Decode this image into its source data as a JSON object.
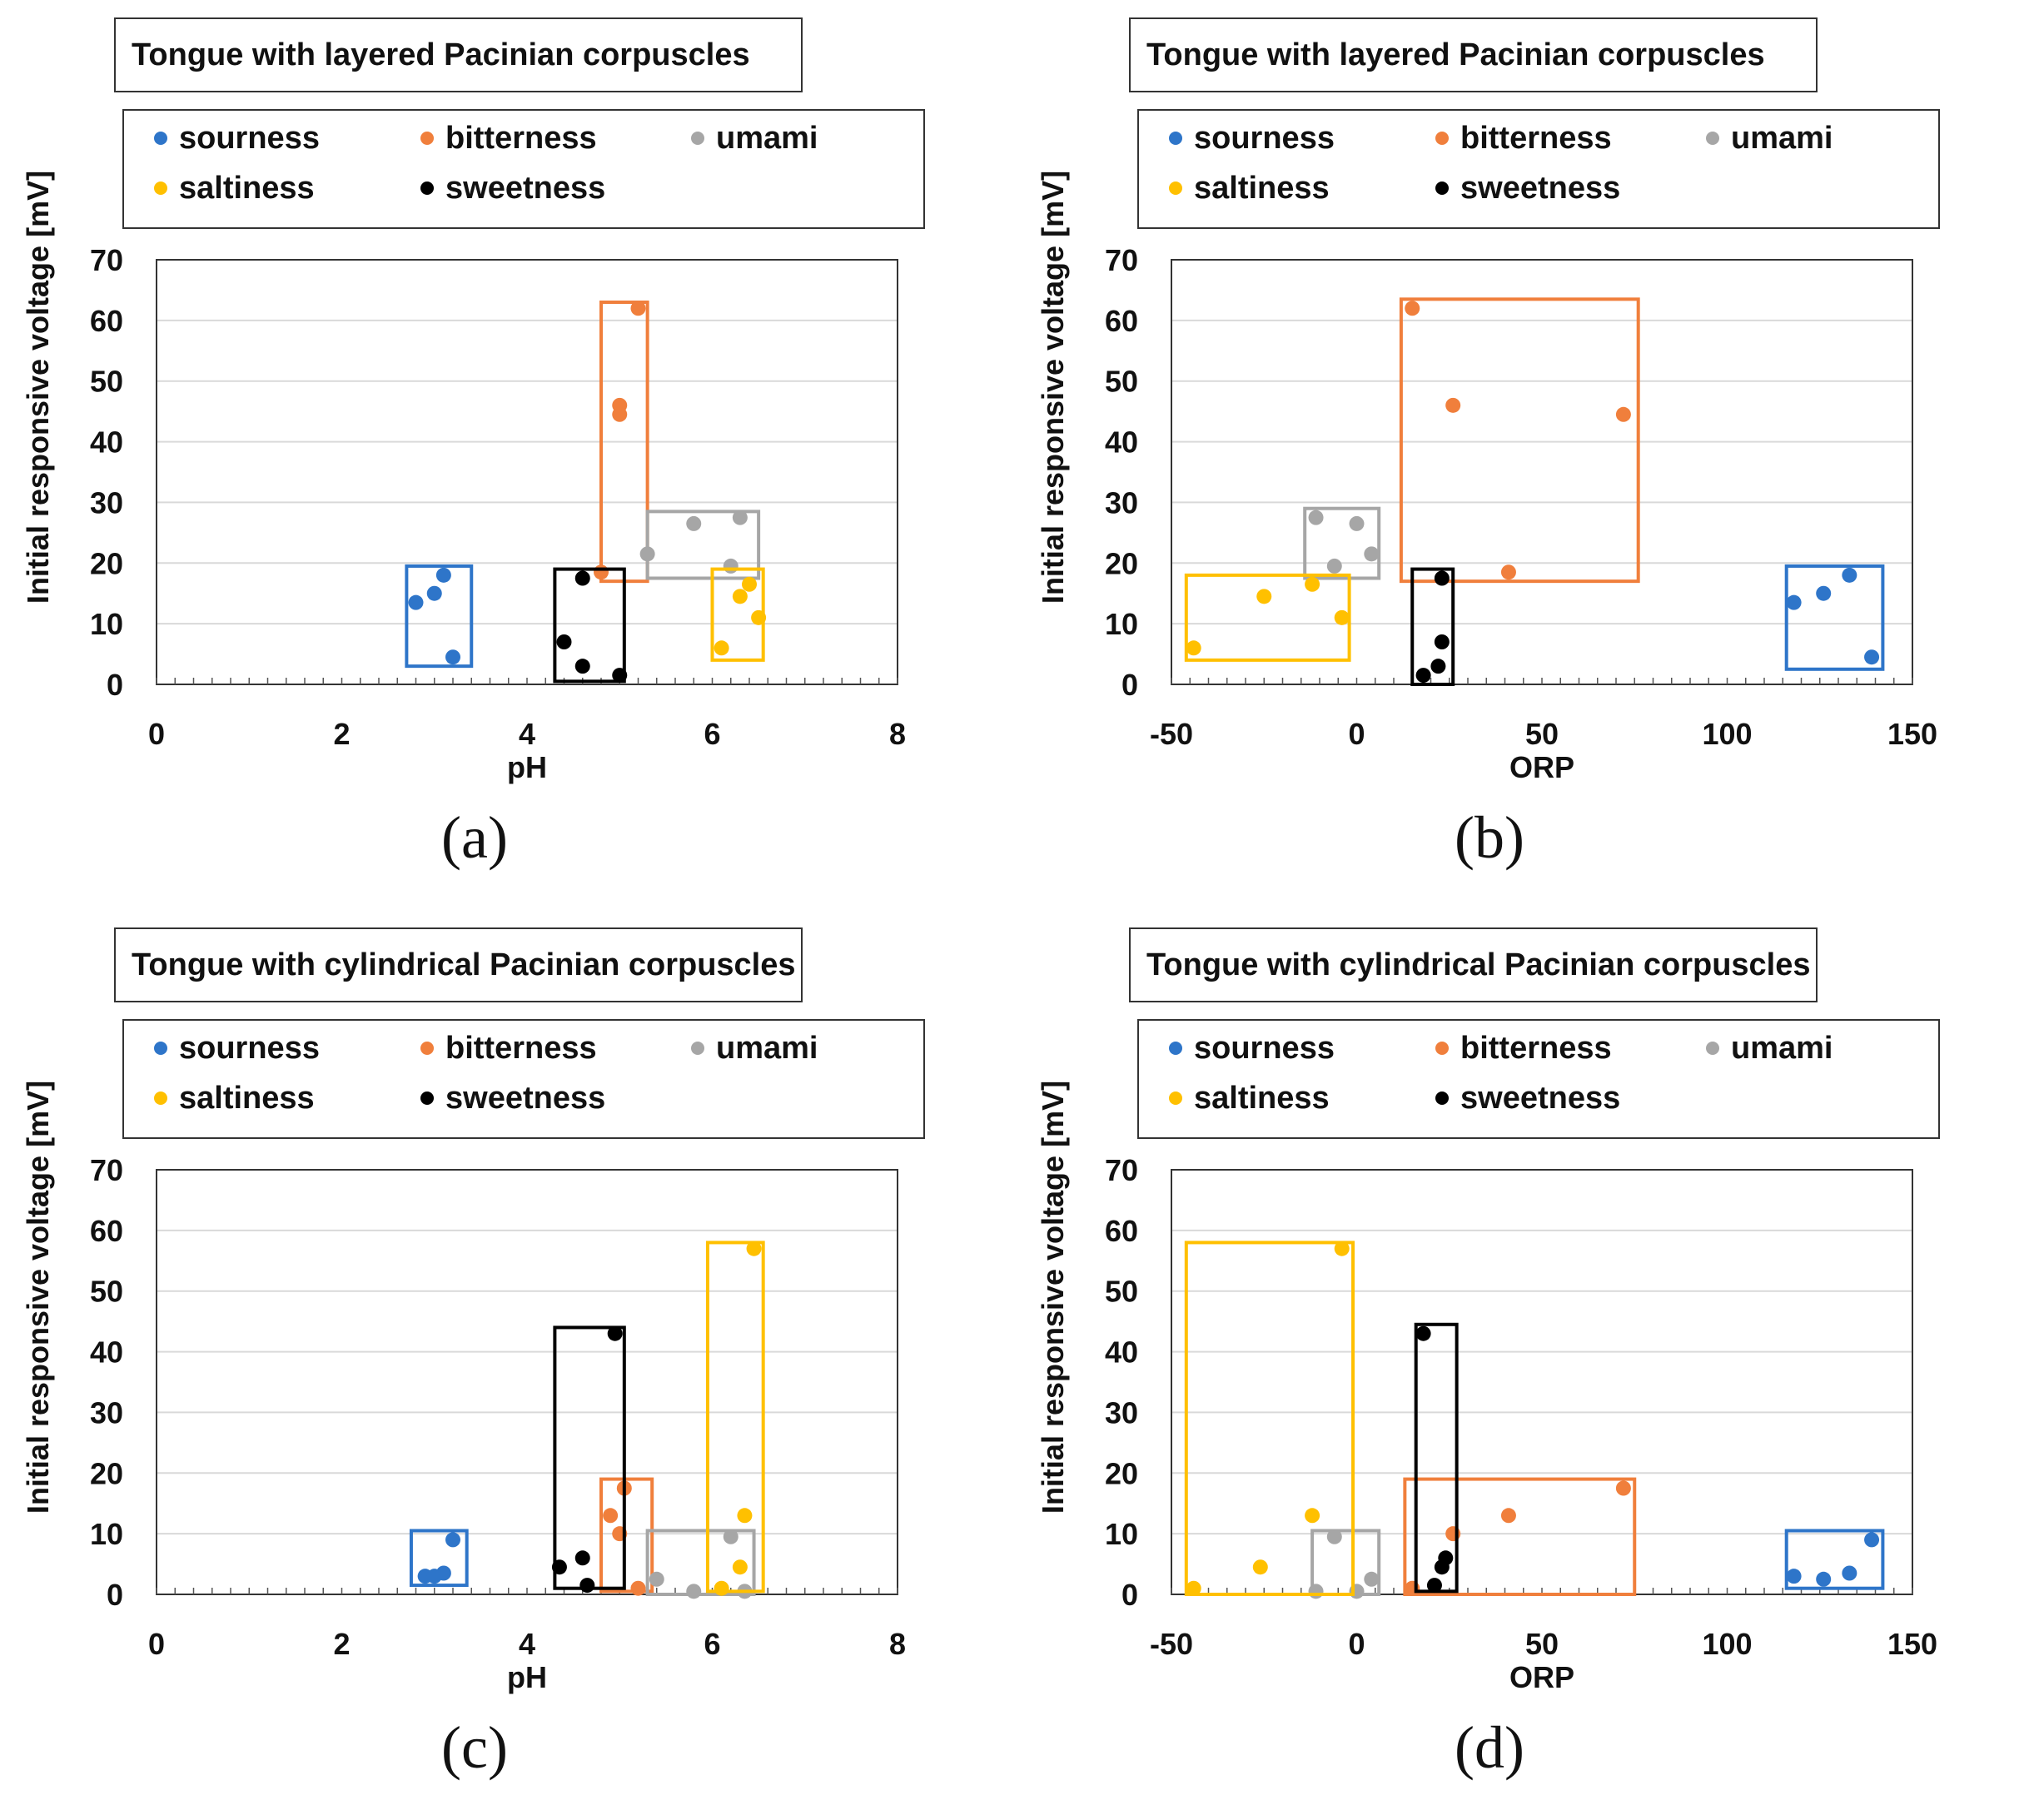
{
  "figure": {
    "labels": [
      "(a)",
      "(b)",
      "(c)",
      "(d)"
    ]
  },
  "legend": {
    "entries": [
      {
        "key": "sourness",
        "label": "sourness",
        "color": "#2E75C9"
      },
      {
        "key": "bitterness",
        "label": "bitterness",
        "color": "#F07F3C"
      },
      {
        "key": "umami",
        "label": "umami",
        "color": "#A6A6A6"
      },
      {
        "key": "saltiness",
        "label": "saltiness",
        "color": "#FFC000"
      },
      {
        "key": "sweetness",
        "label": "sweetness",
        "color": "#000000"
      }
    ]
  },
  "chart_data": [
    {
      "type": "scatter",
      "panel_label": "(a)",
      "title": "Tongue with layered Pacinian corpuscles",
      "xlabel": "pH",
      "ylabel": "Initial responsive voltage [mV]",
      "xlim": [
        0,
        8
      ],
      "ylim": [
        0,
        70
      ],
      "xticks": [
        0,
        2,
        4,
        6,
        8
      ],
      "yticks": [
        0,
        10,
        20,
        30,
        40,
        50,
        60,
        70
      ],
      "series": [
        {
          "name": "sourness",
          "points": [
            [
              2.8,
              13.5
            ],
            [
              3.0,
              15
            ],
            [
              3.1,
              18
            ],
            [
              3.2,
              4.5
            ]
          ],
          "box": [
            2.7,
            3.4,
            3,
            19.5
          ]
        },
        {
          "name": "bitterness",
          "points": [
            [
              4.8,
              18.5
            ],
            [
              5.0,
              46
            ],
            [
              5.0,
              44.5
            ],
            [
              5.2,
              62
            ]
          ],
          "box": [
            4.8,
            5.3,
            17,
            63
          ]
        },
        {
          "name": "umami",
          "points": [
            [
              5.3,
              21.5
            ],
            [
              5.8,
              26.5
            ],
            [
              6.2,
              19.5
            ],
            [
              6.3,
              27.5
            ]
          ],
          "box": [
            5.3,
            6.5,
            17.5,
            28.5
          ]
        },
        {
          "name": "saltiness",
          "points": [
            [
              6.1,
              6
            ],
            [
              6.3,
              14.5
            ],
            [
              6.4,
              16.5
            ],
            [
              6.5,
              11
            ]
          ],
          "box": [
            6.0,
            6.55,
            4,
            19
          ]
        },
        {
          "name": "sweetness",
          "points": [
            [
              4.4,
              7
            ],
            [
              4.6,
              17.5
            ],
            [
              4.6,
              3
            ],
            [
              5.0,
              1.5
            ]
          ],
          "box": [
            4.3,
            5.05,
            0.5,
            19
          ]
        }
      ]
    },
    {
      "type": "scatter",
      "panel_label": "(b)",
      "title": "Tongue with layered Pacinian corpuscles",
      "xlabel": "ORP",
      "ylabel": "Initial responsive voltage [mV]",
      "xlim": [
        -50,
        150
      ],
      "ylim": [
        0,
        70
      ],
      "xticks": [
        -50,
        0,
        50,
        100,
        150
      ],
      "yticks": [
        0,
        10,
        20,
        30,
        40,
        50,
        60,
        70
      ],
      "series": [
        {
          "name": "sourness",
          "points": [
            [
              118,
              13.5
            ],
            [
              126,
              15
            ],
            [
              133,
              18
            ],
            [
              139,
              4.5
            ]
          ],
          "box": [
            116,
            142,
            2.5,
            19.5
          ]
        },
        {
          "name": "bitterness",
          "points": [
            [
              15,
              62
            ],
            [
              26,
              46
            ],
            [
              72,
              44.5
            ],
            [
              41,
              18.5
            ]
          ],
          "box": [
            12,
            76,
            17,
            63.5
          ]
        },
        {
          "name": "umami",
          "points": [
            [
              -11,
              27.5
            ],
            [
              -6,
              19.5
            ],
            [
              0,
              26.5
            ],
            [
              4,
              21.5
            ]
          ],
          "box": [
            -14,
            6,
            17.5,
            29
          ]
        },
        {
          "name": "saltiness",
          "points": [
            [
              -44,
              6
            ],
            [
              -25,
              14.5
            ],
            [
              -12,
              16.5
            ],
            [
              -4,
              11
            ]
          ],
          "box": [
            -46,
            -2,
            4,
            18
          ]
        },
        {
          "name": "sweetness",
          "points": [
            [
              18,
              1.5
            ],
            [
              22,
              3
            ],
            [
              23,
              7
            ],
            [
              23,
              17.5
            ]
          ],
          "box": [
            15,
            26,
            0,
            19
          ]
        }
      ]
    },
    {
      "type": "scatter",
      "panel_label": "(c)",
      "title": "Tongue with cylindrical Pacinian corpuscles",
      "xlabel": "pH",
      "ylabel": "Initial responsive voltage [mV]",
      "xlim": [
        0,
        8
      ],
      "ylim": [
        0,
        70
      ],
      "xticks": [
        0,
        2,
        4,
        6,
        8
      ],
      "yticks": [
        0,
        10,
        20,
        30,
        40,
        50,
        60,
        70
      ],
      "series": [
        {
          "name": "sourness",
          "points": [
            [
              2.9,
              3
            ],
            [
              3.0,
              3
            ],
            [
              3.1,
              3.5
            ],
            [
              3.2,
              9
            ]
          ],
          "box": [
            2.75,
            3.35,
            1.5,
            10.5
          ]
        },
        {
          "name": "bitterness",
          "points": [
            [
              4.9,
              13
            ],
            [
              5.0,
              10
            ],
            [
              5.05,
              17.5
            ],
            [
              5.2,
              1
            ]
          ],
          "box": [
            4.8,
            5.35,
            0.5,
            19
          ]
        },
        {
          "name": "umami",
          "points": [
            [
              5.4,
              2.5
            ],
            [
              5.8,
              0.5
            ],
            [
              6.2,
              9.5
            ],
            [
              6.35,
              0.5
            ]
          ],
          "box": [
            5.3,
            6.45,
            0,
            10.5
          ]
        },
        {
          "name": "saltiness",
          "points": [
            [
              6.1,
              1
            ],
            [
              6.3,
              4.5
            ],
            [
              6.35,
              13
            ],
            [
              6.45,
              57
            ]
          ],
          "box": [
            5.95,
            6.55,
            0.5,
            58
          ]
        },
        {
          "name": "sweetness",
          "points": [
            [
              4.35,
              4.5
            ],
            [
              4.6,
              6
            ],
            [
              4.65,
              1.5
            ],
            [
              4.95,
              43
            ]
          ],
          "box": [
            4.3,
            5.05,
            1,
            44
          ]
        }
      ]
    },
    {
      "type": "scatter",
      "panel_label": "(d)",
      "title": "Tongue with cylindrical Pacinian corpuscles",
      "xlabel": "ORP",
      "ylabel": "Initial responsive voltage [mV]",
      "xlim": [
        -50,
        150
      ],
      "ylim": [
        0,
        70
      ],
      "xticks": [
        -50,
        0,
        50,
        100,
        150
      ],
      "yticks": [
        0,
        10,
        20,
        30,
        40,
        50,
        60,
        70
      ],
      "series": [
        {
          "name": "sourness",
          "points": [
            [
              118,
              3
            ],
            [
              126,
              2.5
            ],
            [
              133,
              3.5
            ],
            [
              139,
              9
            ]
          ],
          "box": [
            116,
            142,
            1,
            10.5
          ]
        },
        {
          "name": "bitterness",
          "points": [
            [
              15,
              1
            ],
            [
              26,
              10
            ],
            [
              41,
              13
            ],
            [
              72,
              17.5
            ]
          ],
          "box": [
            13,
            75,
            0,
            19
          ]
        },
        {
          "name": "umami",
          "points": [
            [
              -11,
              0.5
            ],
            [
              -6,
              9.5
            ],
            [
              0,
              0.5
            ],
            [
              4,
              2.5
            ]
          ],
          "box": [
            -12,
            6,
            0,
            10.5
          ]
        },
        {
          "name": "saltiness",
          "points": [
            [
              -44,
              1
            ],
            [
              -26,
              4.5
            ],
            [
              -12,
              13
            ],
            [
              -4,
              57
            ]
          ],
          "box": [
            -46,
            -1,
            0,
            58
          ]
        },
        {
          "name": "sweetness",
          "points": [
            [
              18,
              43
            ],
            [
              21,
              1.5
            ],
            [
              23,
              4.5
            ],
            [
              24,
              6
            ]
          ],
          "box": [
            16,
            27,
            0.5,
            44.5
          ]
        }
      ]
    }
  ]
}
